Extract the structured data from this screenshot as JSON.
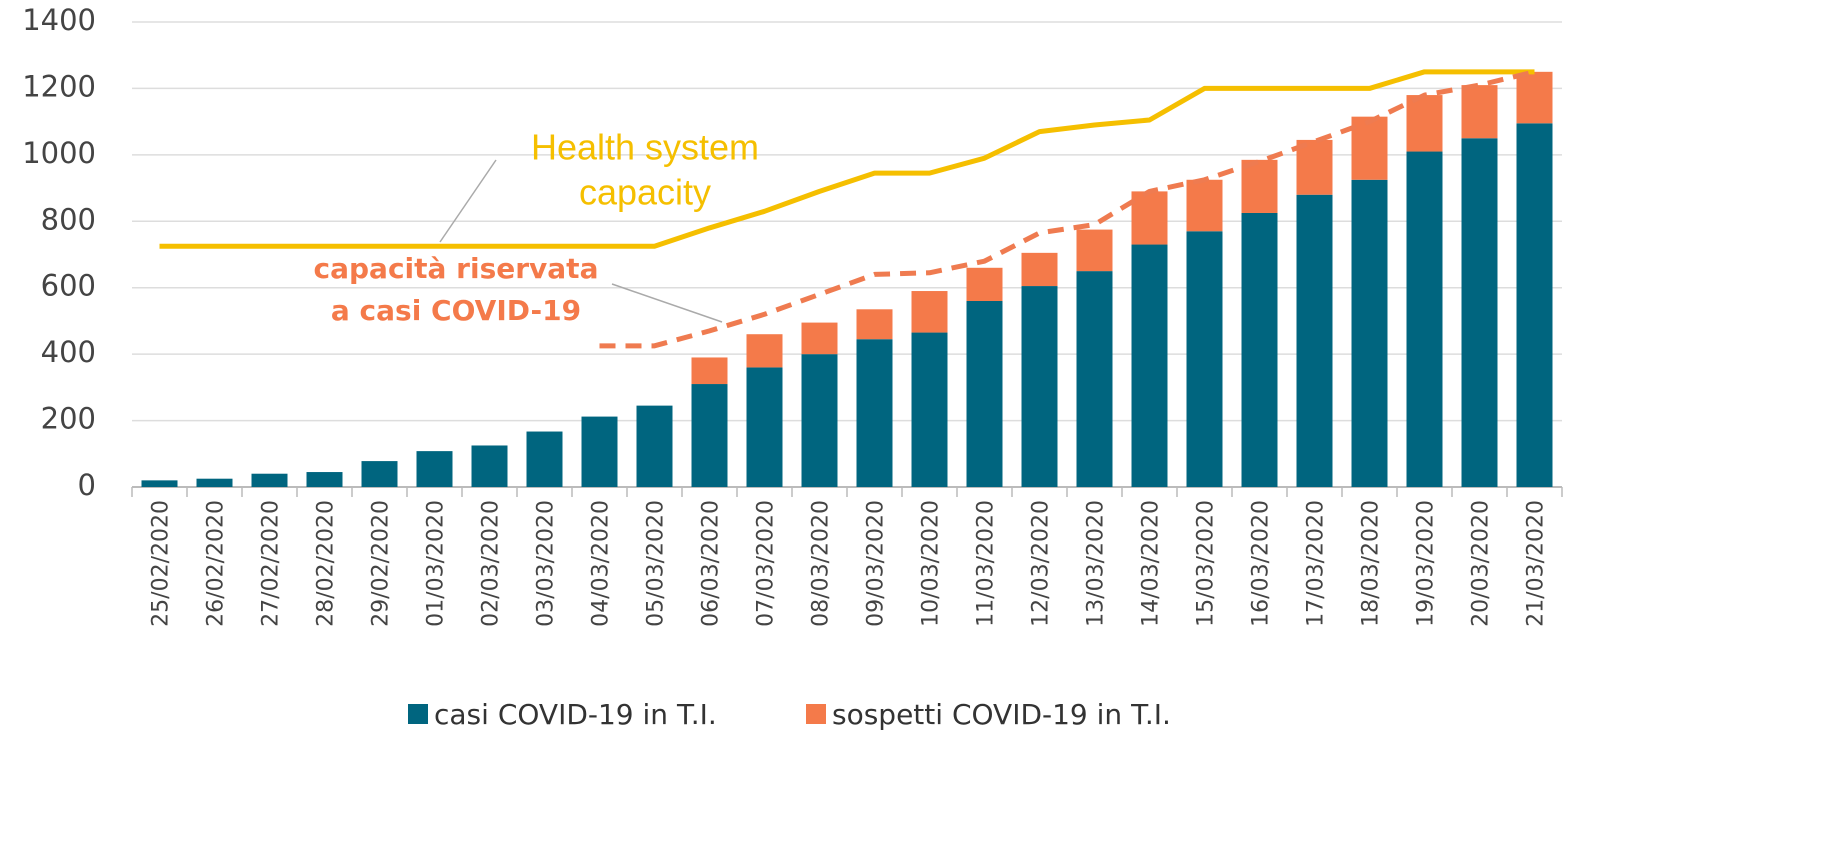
{
  "chart_data": {
    "type": "bar",
    "categories": [
      "25/02/2020",
      "26/02/2020",
      "27/02/2020",
      "28/02/2020",
      "29/02/2020",
      "01/03/2020",
      "02/03/2020",
      "03/03/2020",
      "04/03/2020",
      "05/03/2020",
      "06/03/2020",
      "07/03/2020",
      "08/03/2020",
      "09/03/2020",
      "10/03/2020",
      "11/03/2020",
      "12/03/2020",
      "13/03/2020",
      "14/03/2020",
      "15/03/2020",
      "16/03/2020",
      "17/03/2020",
      "18/03/2020",
      "19/03/2020",
      "20/03/2020",
      "21/03/2020"
    ],
    "series": [
      {
        "name": "casi COVID-19 in T.I.",
        "color": "#00657f",
        "stacked": true,
        "values": [
          20,
          25,
          40,
          45,
          78,
          108,
          125,
          167,
          212,
          245,
          310,
          360,
          400,
          445,
          465,
          560,
          605,
          650,
          730,
          770,
          825,
          880,
          925,
          1010,
          1050,
          1095
        ]
      },
      {
        "name": "sospetti COVID-19 in T.I.",
        "color": "#f47a4a",
        "stacked": true,
        "values": [
          null,
          null,
          null,
          null,
          null,
          null,
          null,
          null,
          null,
          null,
          80,
          100,
          95,
          90,
          125,
          100,
          100,
          125,
          160,
          155,
          160,
          165,
          190,
          170,
          160,
          155
        ]
      },
      {
        "type": "line",
        "color": "#f5bf00",
        "dashed": false,
        "values": [
          725,
          725,
          725,
          725,
          725,
          725,
          725,
          725,
          725,
          725,
          780,
          830,
          890,
          945,
          945,
          990,
          1070,
          1090,
          1105,
          1200,
          1200,
          1200,
          1200,
          1250,
          1250,
          1250
        ]
      },
      {
        "type": "line",
        "color": "#ef7b50",
        "dashed": true,
        "values": [
          null,
          null,
          null,
          null,
          null,
          null,
          null,
          null,
          425,
          425,
          470,
          520,
          580,
          640,
          645,
          680,
          765,
          790,
          890,
          925,
          980,
          1040,
          1100,
          1180,
          1210,
          1250
        ]
      }
    ],
    "annotations": [
      {
        "lines": [
          "Health system",
          "capacity"
        ],
        "color": "#f5bf00"
      },
      {
        "lines": [
          "capacità riservata",
          "a casi COVID-19"
        ],
        "color": "#f47a4a"
      }
    ],
    "ylim": [
      0,
      1400
    ],
    "yticks": [
      0,
      200,
      400,
      600,
      800,
      1000,
      1200,
      1400
    ],
    "grid": true
  }
}
